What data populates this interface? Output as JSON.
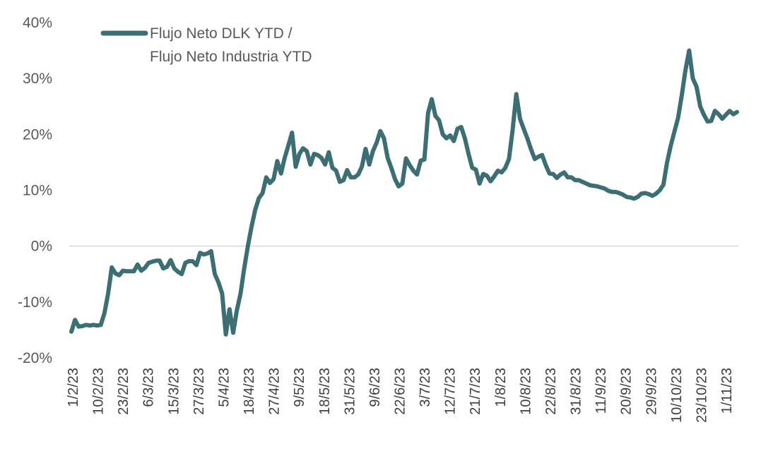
{
  "chart_data": {
    "type": "line",
    "title": "",
    "xlabel": "",
    "ylabel": "",
    "ylim": [
      -20,
      40
    ],
    "y_ticks": [
      "40%",
      "30%",
      "20%",
      "10%",
      "0%",
      "-10%",
      "-20%"
    ],
    "x_ticks": [
      "1/2/23",
      "10/2/23",
      "23/2/23",
      "6/3/23",
      "15/3/23",
      "27/3/23",
      "5/4/23",
      "18/4/23",
      "27/4/23",
      "9/5/23",
      "18/5/23",
      "31/5/23",
      "9/6/23",
      "22/6/23",
      "3/7/23",
      "12/7/23",
      "21/7/23",
      "1/8/23",
      "10/8/23",
      "22/8/23",
      "31/8/23",
      "11/9/23",
      "20/9/23",
      "29/9/23",
      "10/10/23",
      "23/10/23",
      "1/11/23"
    ],
    "grid": false,
    "zero_line": true,
    "legend": {
      "position": "top-left",
      "entries": [
        {
          "label_line1": "Flujo Neto DLK YTD /",
          "label_line2": "Flujo Neto Industria YTD",
          "color": "#3c6e74"
        }
      ]
    },
    "series": [
      {
        "name": "Flujo Neto DLK YTD / Flujo Neto Industria YTD",
        "color": "#3c6e74",
        "values": [
          -15.3,
          -13.2,
          -14.4,
          -14.3,
          -14.1,
          -14.2,
          -14.1,
          -14.2,
          -14.1,
          -12.0,
          -8.5,
          -3.8,
          -4.9,
          -5.2,
          -4.4,
          -4.5,
          -4.5,
          -4.5,
          -3.3,
          -4.4,
          -3.9,
          -3.0,
          -2.8,
          -2.6,
          -2.6,
          -4.0,
          -3.7,
          -2.5,
          -4.0,
          -4.6,
          -5.0,
          -3.0,
          -2.7,
          -2.7,
          -3.4,
          -1.2,
          -1.5,
          -1.3,
          -0.9,
          -5.0,
          -6.5,
          -8.5,
          -15.8,
          -11.3,
          -15.5,
          -11.5,
          -8.5,
          -4.0,
          0.0,
          3.5,
          6.5,
          8.6,
          9.5,
          12.3,
          11.3,
          12.0,
          15.2,
          13.0,
          15.8,
          18.0,
          20.3,
          14.2,
          16.5,
          17.5,
          17.0,
          14.6,
          16.5,
          16.3,
          15.8,
          14.6,
          16.8,
          14.0,
          13.5,
          11.5,
          11.8,
          13.6,
          12.3,
          12.3,
          12.8,
          14.2,
          17.4,
          14.6,
          17.0,
          18.5,
          20.6,
          19.3,
          15.8,
          14.0,
          12.0,
          10.7,
          11.2,
          15.7,
          14.5,
          13.5,
          12.8,
          15.3,
          15.5,
          23.8,
          26.3,
          23.3,
          22.5,
          20.0,
          19.3,
          19.8,
          18.8,
          21.0,
          21.3,
          19.3,
          16.5,
          14.0,
          13.7,
          11.2,
          12.9,
          12.6,
          11.6,
          12.5,
          13.5,
          13.2,
          14.0,
          15.6,
          20.8,
          27.2,
          22.8,
          21.0,
          19.3,
          17.3,
          15.6,
          16.0,
          16.3,
          14.5,
          13.0,
          12.9,
          12.2,
          12.8,
          13.2,
          12.3,
          12.3,
          11.8,
          11.8,
          11.5,
          11.2,
          10.9,
          10.8,
          10.7,
          10.5,
          10.3,
          9.9,
          9.7,
          9.7,
          9.5,
          9.2,
          8.8,
          8.7,
          8.5,
          8.8,
          9.4,
          9.5,
          9.3,
          9.0,
          9.4,
          10.0,
          11.0,
          15.0,
          18.0,
          20.5,
          23.0,
          27.0,
          31.5,
          35.0,
          30.0,
          28.5,
          25.0,
          23.5,
          22.3,
          22.4,
          24.2,
          23.6,
          22.8,
          23.5,
          24.2,
          23.6,
          24.0
        ]
      }
    ]
  }
}
